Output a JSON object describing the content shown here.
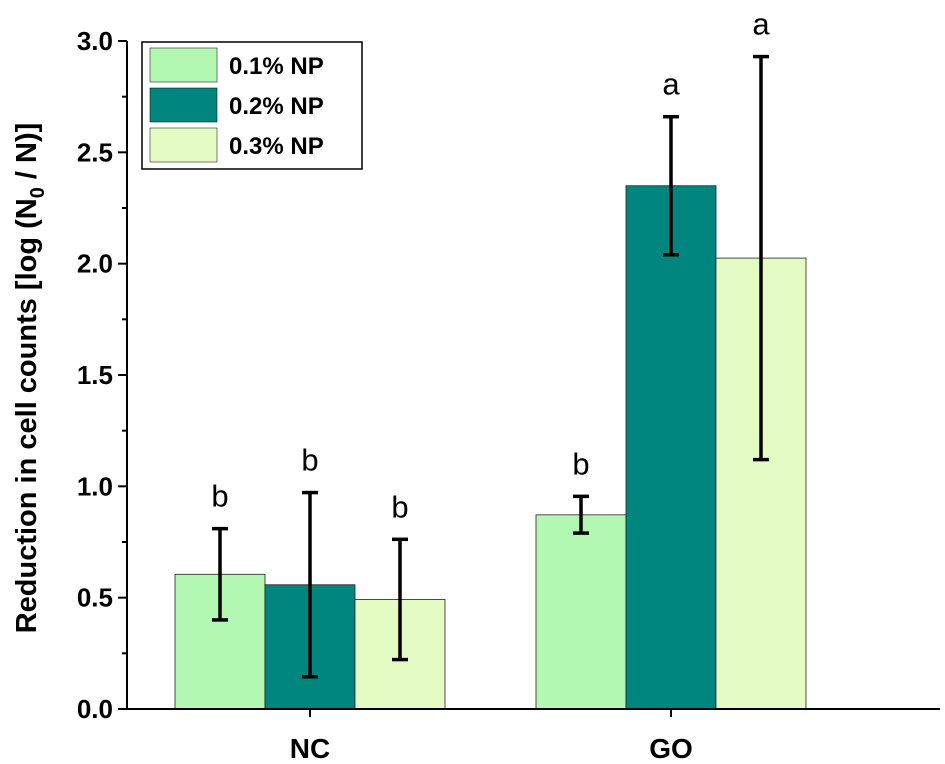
{
  "chart_data": {
    "type": "bar",
    "categories": [
      "NC",
      "GO"
    ],
    "series": [
      {
        "name": "0.1% NP",
        "color": "#b2f7b2",
        "values": [
          0.605,
          0.872
        ],
        "error_low": [
          0.4,
          0.79
        ],
        "error_high": [
          0.81,
          0.955
        ],
        "labels": [
          "b",
          "b"
        ]
      },
      {
        "name": "0.2% NP",
        "color": "#00867f",
        "values": [
          0.558,
          2.35
        ],
        "error_low": [
          0.145,
          2.04
        ],
        "error_high": [
          0.972,
          2.66
        ],
        "labels": [
          "b",
          "a"
        ]
      },
      {
        "name": "0.3% NP",
        "color": "#e4fcc4",
        "values": [
          0.492,
          2.025
        ],
        "error_low": [
          0.222,
          1.12
        ],
        "error_high": [
          0.762,
          2.93
        ],
        "labels": [
          "b",
          "a"
        ]
      }
    ],
    "ylabel_main": "Reduction in cell counts [log (N",
    "ylabel_sub": "0",
    "ylabel_tail": " / N)]",
    "ylim": [
      0,
      3.0
    ],
    "yticks": [
      "0.0",
      "0.5",
      "1.0",
      "1.5",
      "2.0",
      "2.5",
      "3.0"
    ],
    "legend_position": "top-left",
    "grid": false
  }
}
